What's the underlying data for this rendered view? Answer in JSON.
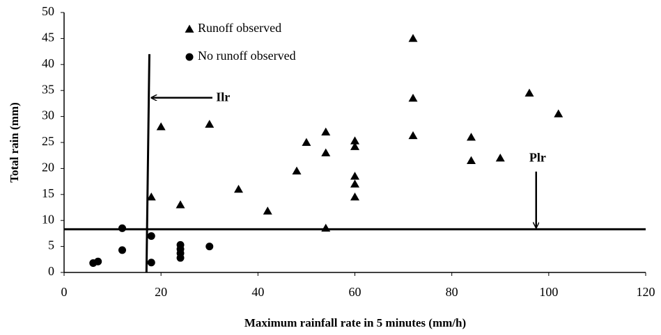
{
  "chart_data": {
    "type": "scatter",
    "x_label": "Maximum rainfall rate in 5 minutes (mm/h)",
    "y_label": "Total rain (mm)",
    "xlim": [
      0,
      120
    ],
    "xticks": [
      0,
      20,
      40,
      60,
      80,
      100,
      120
    ],
    "ylim": [
      0,
      50
    ],
    "yticks": [
      0,
      5,
      10,
      15,
      20,
      25,
      30,
      35,
      40,
      45,
      50
    ],
    "grid": false,
    "legend": "upper-left",
    "series": [
      {
        "name": "Runoff observed",
        "marker": "triangle",
        "color": "#000000",
        "x": [
          18,
          20,
          24,
          30,
          36,
          42,
          48,
          50,
          54,
          54,
          54,
          60,
          60,
          60,
          60,
          60,
          72,
          72,
          72,
          84,
          84,
          90,
          96,
          102
        ],
        "values": [
          14.5,
          28,
          13,
          28.5,
          16,
          11.8,
          19.5,
          25,
          27,
          23,
          8.5,
          25.3,
          24.2,
          18.5,
          17,
          14.5,
          45,
          33.5,
          26.3,
          26,
          21.5,
          22,
          34.5,
          30.5
        ]
      },
      {
        "name": "No runoff observed",
        "marker": "circle",
        "color": "#000000",
        "x": [
          6,
          7,
          12,
          12,
          18,
          18,
          24,
          24,
          24,
          24,
          30
        ],
        "values": [
          1.8,
          2.1,
          8.5,
          4.3,
          7,
          1.9,
          5.3,
          4.5,
          3.7,
          2.8,
          5
        ]
      }
    ],
    "lines": [
      {
        "x": [
          17,
          17.6
        ],
        "values": [
          0,
          42
        ]
      },
      {
        "x": [
          0,
          120
        ],
        "values": [
          8.3,
          8.3
        ]
      }
    ],
    "annotations": [
      {
        "text": "Ilr",
        "x": 32.8,
        "y": 33.5,
        "arrow_x": [
          30.6,
          18
        ],
        "arrow_y": [
          33.6,
          33.6
        ]
      },
      {
        "text": "Plr",
        "x": 97.7,
        "y": 21.9,
        "arrow_x": [
          97.4,
          97.4
        ],
        "arrow_y": [
          19.4,
          8.6
        ]
      }
    ]
  }
}
